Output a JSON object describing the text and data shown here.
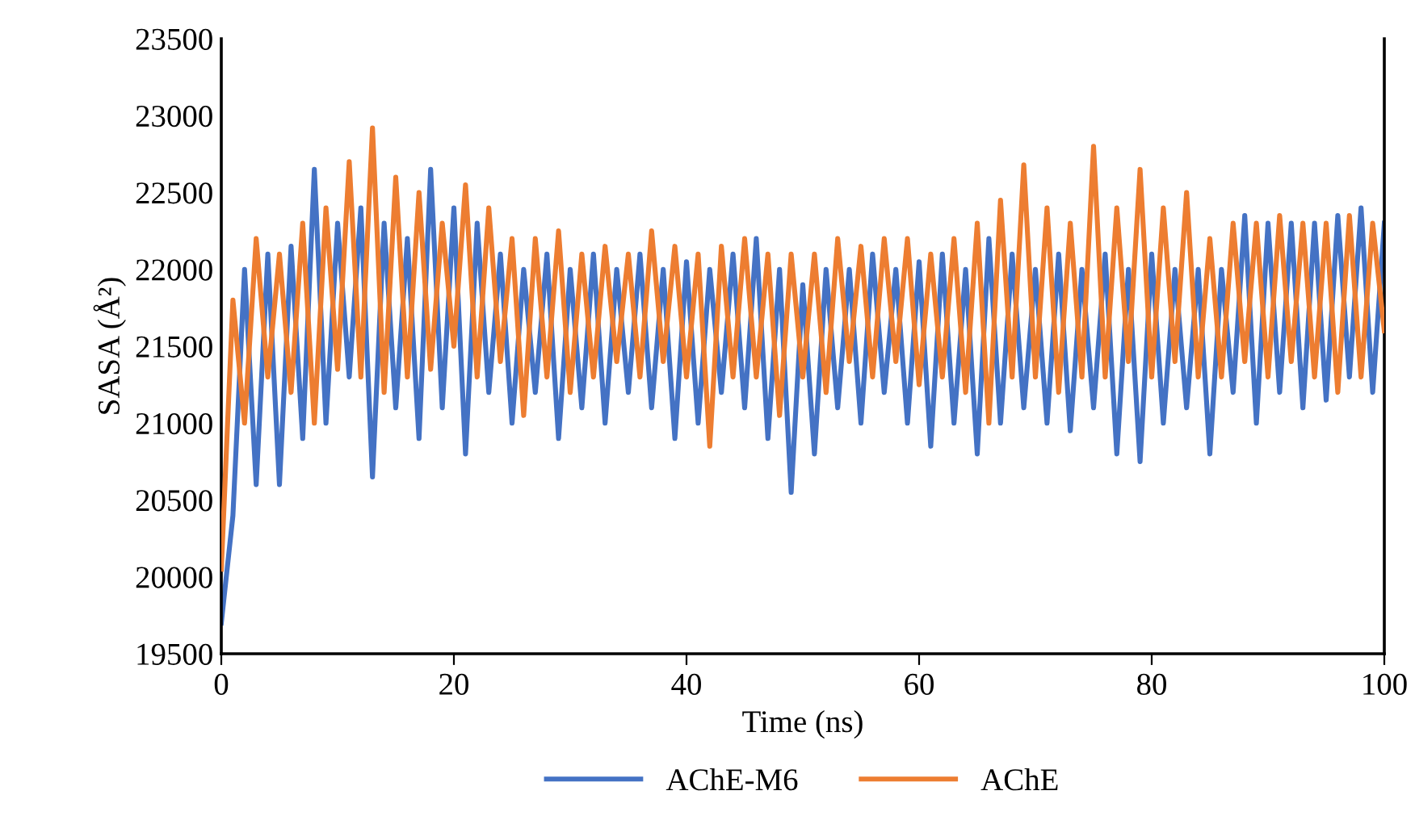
{
  "chart_data": {
    "type": "line",
    "xlabel": "Time (ns)",
    "ylabel": "SASA (Å²)",
    "x": [
      0,
      1,
      2,
      3,
      4,
      5,
      6,
      7,
      8,
      9,
      10,
      11,
      12,
      13,
      14,
      15,
      16,
      17,
      18,
      19,
      20,
      21,
      22,
      23,
      24,
      25,
      26,
      27,
      28,
      29,
      30,
      31,
      32,
      33,
      34,
      35,
      36,
      37,
      38,
      39,
      40,
      41,
      42,
      43,
      44,
      45,
      46,
      47,
      48,
      49,
      50,
      51,
      52,
      53,
      54,
      55,
      56,
      57,
      58,
      59,
      60,
      61,
      62,
      63,
      64,
      65,
      66,
      67,
      68,
      69,
      70,
      71,
      72,
      73,
      74,
      75,
      76,
      77,
      78,
      79,
      80,
      81,
      82,
      83,
      84,
      85,
      86,
      87,
      88,
      89,
      90,
      91,
      92,
      93,
      94,
      95,
      96,
      97,
      98,
      99,
      100
    ],
    "series": [
      {
        "name": "AChE-M6",
        "color": "#4472c4",
        "values": [
          19700,
          20400,
          22000,
          20600,
          22100,
          20600,
          22150,
          20900,
          22650,
          21000,
          22300,
          21300,
          22400,
          20650,
          22300,
          21100,
          22200,
          20900,
          22650,
          21100,
          22400,
          20800,
          22300,
          21200,
          22100,
          21000,
          22000,
          21200,
          22100,
          20900,
          22000,
          21100,
          22100,
          21000,
          22000,
          21200,
          22100,
          21100,
          22000,
          20900,
          22050,
          21000,
          22000,
          21200,
          22100,
          21100,
          22200,
          20900,
          22000,
          20550,
          21900,
          20800,
          22000,
          21100,
          22000,
          21000,
          22100,
          21200,
          22000,
          21000,
          22050,
          20850,
          22100,
          21000,
          22000,
          20800,
          22200,
          21000,
          22100,
          21100,
          22000,
          21000,
          22100,
          20950,
          22000,
          21100,
          22100,
          20800,
          22000,
          20750,
          22100,
          21000,
          22000,
          21100,
          22000,
          20800,
          22000,
          21200,
          22350,
          21000,
          22300,
          21200,
          22300,
          21100,
          22300,
          21150,
          22350,
          21300,
          22400,
          21200,
          22300
        ]
      },
      {
        "name": "AChE",
        "color": "#ed7d31",
        "values": [
          20050,
          21800,
          21000,
          22200,
          21300,
          22100,
          21200,
          22300,
          21000,
          22400,
          21350,
          22700,
          21300,
          22920,
          21200,
          22600,
          21300,
          22500,
          21350,
          22300,
          21500,
          22550,
          21300,
          22400,
          21400,
          22200,
          21050,
          22200,
          21300,
          22250,
          21200,
          22100,
          21300,
          22150,
          21400,
          22100,
          21300,
          22250,
          21400,
          22150,
          21300,
          22100,
          20850,
          22150,
          21300,
          22200,
          21300,
          22100,
          21050,
          22100,
          21300,
          22100,
          21200,
          22200,
          21400,
          22150,
          21300,
          22200,
          21400,
          22200,
          21250,
          22100,
          21300,
          22200,
          21200,
          22300,
          21000,
          22450,
          21300,
          22680,
          21300,
          22400,
          21200,
          22300,
          21300,
          22800,
          21300,
          22400,
          21400,
          22650,
          21300,
          22400,
          21400,
          22500,
          21300,
          22200,
          21300,
          22300,
          21400,
          22300,
          21300,
          22350,
          21400,
          22300,
          21300,
          22300,
          21200,
          22350,
          21300,
          22300,
          21600
        ]
      }
    ],
    "xlim": [
      0,
      100
    ],
    "xticks": [
      0,
      20,
      40,
      60,
      80,
      100
    ],
    "ylim": [
      19500,
      23500
    ],
    "yticks": [
      19500,
      20000,
      20500,
      21000,
      21500,
      22000,
      22500,
      23000,
      23500
    ],
    "grid": false,
    "legend": "bottom",
    "line_style": "solid",
    "marker": "none"
  }
}
